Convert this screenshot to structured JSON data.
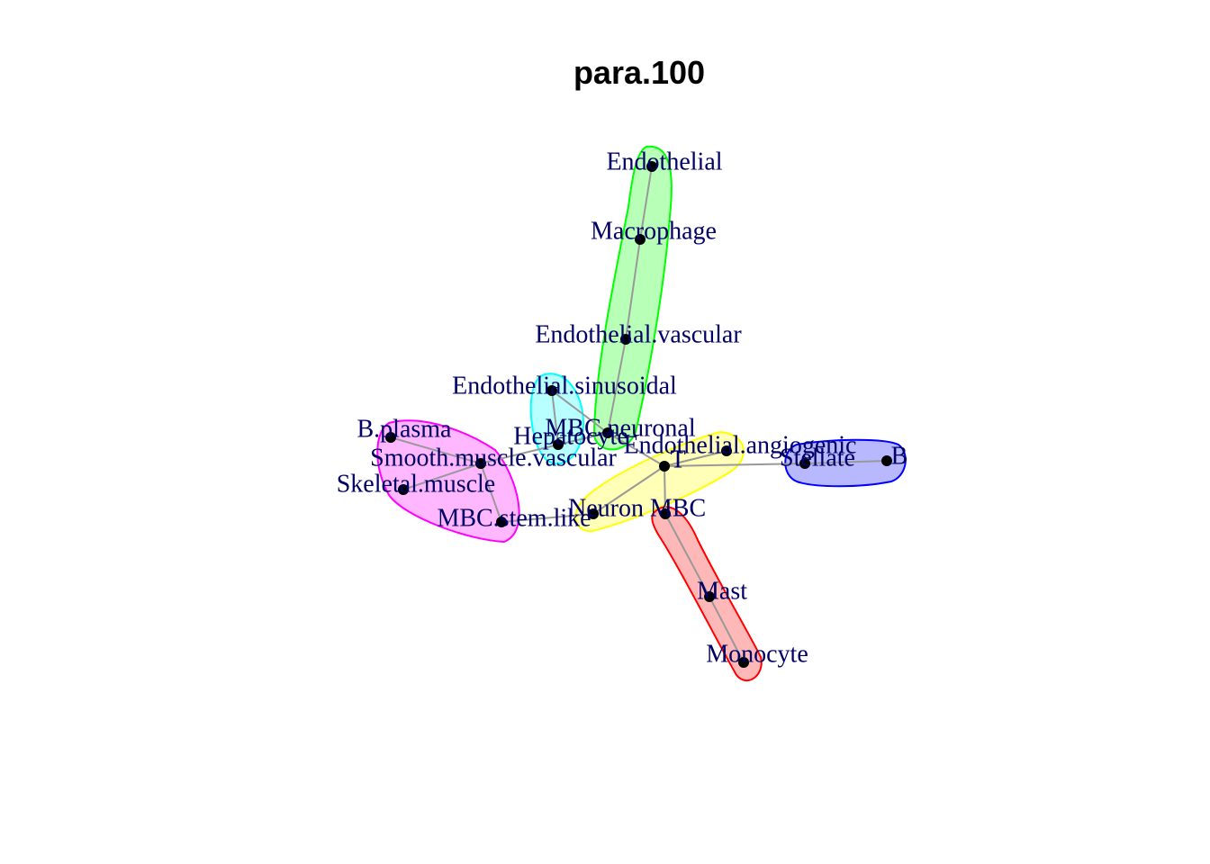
{
  "title": "para.100",
  "colors": {
    "edge": "#999999",
    "node": "#000000",
    "label": "#000066",
    "magenta": "#ff00ff",
    "cyan": "#00ffff",
    "green": "#00ff00",
    "yellow": "#ffff00",
    "red": "#ff0000",
    "blue": "#0000ff"
  },
  "nodes": [
    {
      "id": "endothelial",
      "label": "Endothelial"
    },
    {
      "id": "macrophage",
      "label": "Macrophage"
    },
    {
      "id": "endothelial-vascular",
      "label": "Endothelial.vascular"
    },
    {
      "id": "endothelial-sinusoidal",
      "label": "Endothelial.sinusoidal"
    },
    {
      "id": "mbc-neuronal",
      "label": "MBC.neuronal"
    },
    {
      "id": "hepatocyte",
      "label": "Hepatocyte"
    },
    {
      "id": "b-plasma",
      "label": "B.plasma"
    },
    {
      "id": "smooth-muscle-vascular",
      "label": "Smooth.muscle.vascular"
    },
    {
      "id": "skeletal-muscle",
      "label": "Skeletal.muscle"
    },
    {
      "id": "mbc-stem-like",
      "label": "MBC.stem.like"
    },
    {
      "id": "endothelial-angiogenic",
      "label": "Endothelial.angiogenic"
    },
    {
      "id": "t",
      "label": "T"
    },
    {
      "id": "neuron",
      "label": "Neuron"
    },
    {
      "id": "mbc",
      "label": "MBC"
    },
    {
      "id": "stellate",
      "label": "Stellate"
    },
    {
      "id": "b",
      "label": "B"
    },
    {
      "id": "mast",
      "label": "Mast"
    },
    {
      "id": "monocyte",
      "label": "Monocyte"
    }
  ],
  "edges": [
    [
      "endothelial",
      "macrophage"
    ],
    [
      "macrophage",
      "endothelial-vascular"
    ],
    [
      "endothelial-vascular",
      "mbc-neuronal"
    ],
    [
      "endothelial-sinusoidal",
      "hepatocyte"
    ],
    [
      "endothelial-sinusoidal",
      "mbc-neuronal"
    ],
    [
      "hepatocyte",
      "mbc-neuronal"
    ],
    [
      "mbc-neuronal",
      "t"
    ],
    [
      "b-plasma",
      "smooth-muscle-vascular"
    ],
    [
      "smooth-muscle-vascular",
      "skeletal-muscle"
    ],
    [
      "smooth-muscle-vascular",
      "mbc-stem-like"
    ],
    [
      "smooth-muscle-vascular",
      "hepatocyte"
    ],
    [
      "mbc-stem-like",
      "neuron"
    ],
    [
      "neuron",
      "t"
    ],
    [
      "t",
      "endothelial-angiogenic"
    ],
    [
      "t",
      "stellate"
    ],
    [
      "stellate",
      "b"
    ],
    [
      "t",
      "mbc"
    ],
    [
      "mbc",
      "mast"
    ],
    [
      "mast",
      "monocyte"
    ]
  ],
  "communities": [
    {
      "name": "magenta",
      "color": "magenta",
      "members": [
        "b-plasma",
        "smooth-muscle-vascular",
        "skeletal-muscle",
        "mbc-stem-like"
      ]
    },
    {
      "name": "cyan",
      "color": "cyan",
      "members": [
        "endothelial-sinusoidal",
        "hepatocyte"
      ]
    },
    {
      "name": "green",
      "color": "green",
      "members": [
        "endothelial",
        "macrophage",
        "endothelial-vascular",
        "mbc-neuronal"
      ]
    },
    {
      "name": "yellow",
      "color": "yellow",
      "members": [
        "t",
        "endothelial-angiogenic",
        "neuron"
      ]
    },
    {
      "name": "red",
      "color": "red",
      "members": [
        "mbc",
        "mast",
        "monocyte"
      ]
    },
    {
      "name": "blue",
      "color": "blue",
      "members": [
        "stellate",
        "b"
      ]
    }
  ]
}
